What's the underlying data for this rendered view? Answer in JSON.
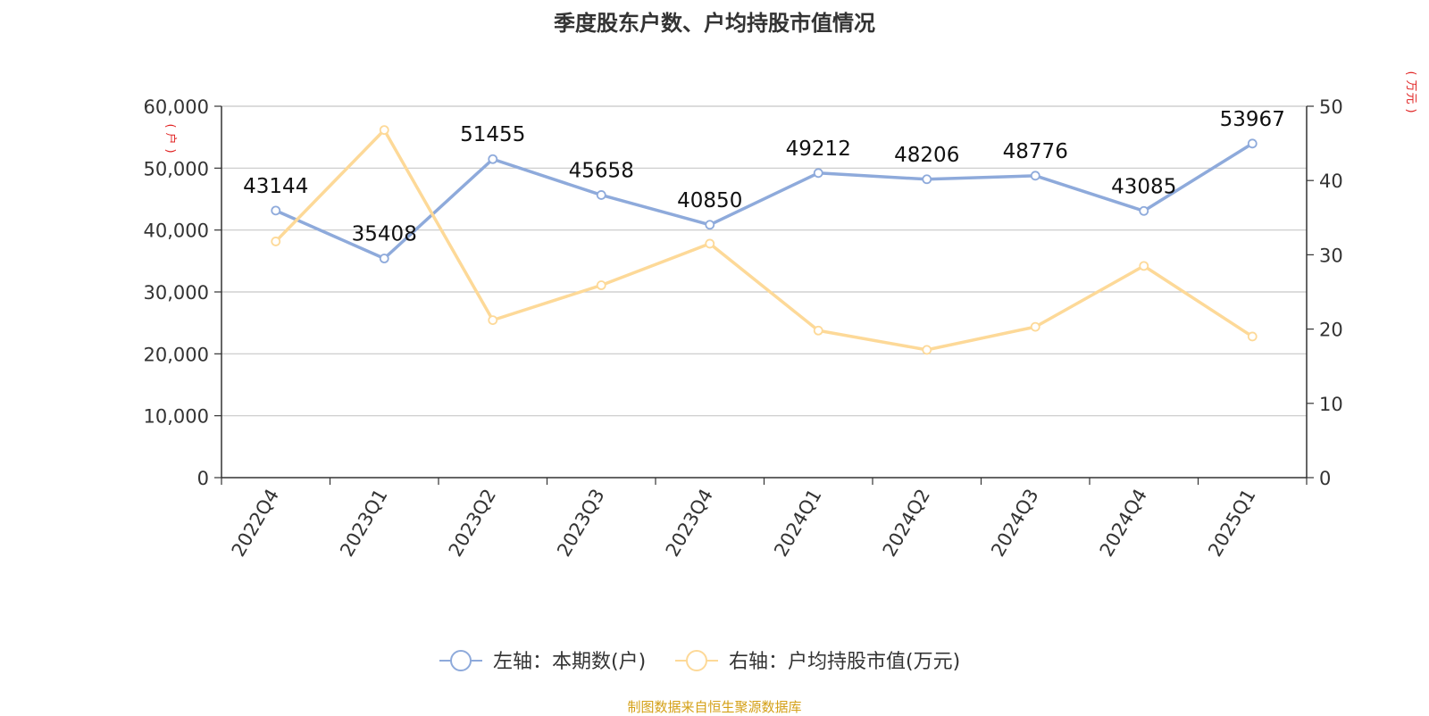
{
  "title": "季度股东户数、户均持股市值情况",
  "footer": "制图数据来自恒生聚源数据库",
  "colors": {
    "series1": "#8eaadb",
    "series2": "#fdd998",
    "unit_label": "#e02020",
    "footer": "#d4a017",
    "grid": "#c8c8c8",
    "axis": "#333333"
  },
  "chart_data": {
    "type": "line",
    "title": "季度股东户数、户均持股市值情况",
    "categories": [
      "2022Q4",
      "2023Q1",
      "2023Q2",
      "2023Q3",
      "2023Q4",
      "2024Q1",
      "2024Q2",
      "2024Q3",
      "2024Q4",
      "2025Q1"
    ],
    "left_axis": {
      "unit": "(户)",
      "ylim": [
        0,
        60000
      ],
      "ticks": [
        "0",
        "10,000",
        "20,000",
        "30,000",
        "40,000",
        "50,000",
        "60,000"
      ]
    },
    "right_axis": {
      "unit": "(万元)",
      "ylim": [
        0,
        50
      ],
      "ticks": [
        "0",
        "10",
        "20",
        "30",
        "40",
        "50"
      ]
    },
    "series": [
      {
        "name": "左轴：本期数(户)",
        "axis": "left",
        "values": [
          43144,
          35408,
          51455,
          45658,
          40850,
          49212,
          48206,
          48776,
          43085,
          53967
        ],
        "labels": [
          "43144",
          "35408",
          "51455",
          "45658",
          "40850",
          "49212",
          "48206",
          "48776",
          "43085",
          "53967"
        ]
      },
      {
        "name": "右轴：户均持股市值(万元)",
        "axis": "right",
        "values": [
          31.8,
          46.8,
          21.2,
          25.9,
          31.5,
          19.8,
          17.2,
          20.3,
          28.5,
          19.0
        ]
      }
    ],
    "grid": true,
    "legend": "bottom-center"
  }
}
